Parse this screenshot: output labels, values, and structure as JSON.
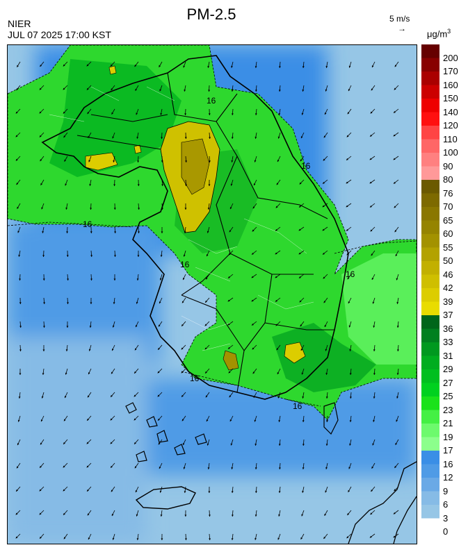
{
  "header": {
    "title": "PM-2.5",
    "agency": "NIER",
    "timestamp": "JUL 07 2025 17:00 KST",
    "wind_reference": "5 m/s",
    "wind_reference_arrow": "→",
    "unit": "μg/m",
    "unit_exp": "3"
  },
  "legend": {
    "thresholds": [
      {
        "label": "200",
        "color": "#660000"
      },
      {
        "label": "170",
        "color": "#880000"
      },
      {
        "label": "160",
        "color": "#aa0000"
      },
      {
        "label": "150",
        "color": "#cc0000"
      },
      {
        "label": "140",
        "color": "#ee0000"
      },
      {
        "label": "120",
        "color": "#ff1010"
      },
      {
        "label": "110",
        "color": "#ff4444"
      },
      {
        "label": "100",
        "color": "#ff6666"
      },
      {
        "label": "90",
        "color": "#ff8080"
      },
      {
        "label": "80",
        "color": "#ff9999"
      },
      {
        "label": "76",
        "color": "#6b5a00"
      },
      {
        "label": "70",
        "color": "#7d6a00"
      },
      {
        "label": "65",
        "color": "#8a7700"
      },
      {
        "label": "60",
        "color": "#958400"
      },
      {
        "label": "55",
        "color": "#a39200"
      },
      {
        "label": "50",
        "color": "#b3a200"
      },
      {
        "label": "46",
        "color": "#c2b000"
      },
      {
        "label": "42",
        "color": "#cfbf00"
      },
      {
        "label": "39",
        "color": "#dccd00"
      },
      {
        "label": "37",
        "color": "#e9dc00"
      },
      {
        "label": "36",
        "color": "#00661a"
      },
      {
        "label": "33",
        "color": "#00801f"
      },
      {
        "label": "31",
        "color": "#00991f"
      },
      {
        "label": "29",
        "color": "#00ad1f"
      },
      {
        "label": "27",
        "color": "#00bf1f"
      },
      {
        "label": "25",
        "color": "#00d11f"
      },
      {
        "label": "23",
        "color": "#1ae21a"
      },
      {
        "label": "21",
        "color": "#44f044"
      },
      {
        "label": "19",
        "color": "#6dfa6d"
      },
      {
        "label": "17",
        "color": "#8cff8c"
      },
      {
        "label": "16",
        "color": "#3a8ee6"
      },
      {
        "label": "12",
        "color": "#4f9be6"
      },
      {
        "label": "9",
        "color": "#6aa9e6"
      },
      {
        "label": "6",
        "color": "#86bbe6"
      },
      {
        "label": "3",
        "color": "#96c6e6"
      },
      {
        "label": "0",
        "color": "#ffffff"
      }
    ]
  },
  "map": {
    "contour_labels": [
      "16",
      "16",
      "16",
      "16",
      "16",
      "16",
      "16"
    ]
  }
}
